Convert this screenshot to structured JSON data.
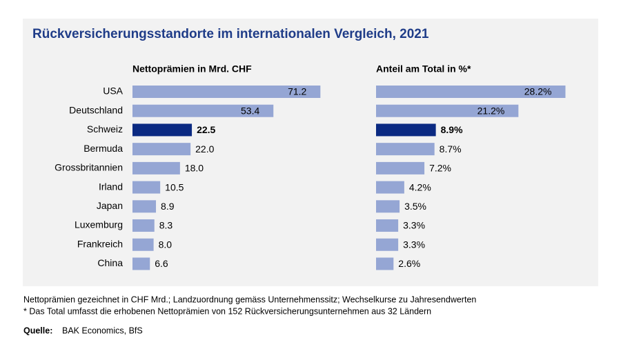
{
  "title": "Rückversicherungsstandorte im internationalen Vergleich, 2021",
  "chart_data": [
    {
      "type": "hbar",
      "title": "Nettoprämien in Mrd. CHF",
      "categories": [
        "USA",
        "Deutschland",
        "Schweiz",
        "Bermuda",
        "Grossbritannien",
        "Irland",
        "Japan",
        "Luxemburg",
        "Frankreich",
        "China"
      ],
      "values": [
        71.2,
        53.4,
        22.5,
        22.0,
        18.0,
        10.5,
        8.9,
        8.3,
        8.0,
        6.6
      ],
      "value_labels": [
        "71.2",
        "53.4",
        "22.5",
        "22.0",
        "18.0",
        "10.5",
        "8.9",
        "8.3",
        "8.0",
        "6.6"
      ],
      "color": "#95a6d4",
      "highlight": {
        "index": 2,
        "color": "#0b2a82"
      },
      "xlim": [
        0,
        80
      ]
    },
    {
      "type": "hbar",
      "title": "Anteil am Total in %*",
      "values": [
        28.2,
        21.2,
        8.9,
        8.7,
        7.2,
        4.2,
        3.5,
        3.3,
        3.3,
        2.6
      ],
      "value_labels": [
        "28.2%",
        "21.2%",
        "8.9%",
        "8.7%",
        "7.2%",
        "4.2%",
        "3.5%",
        "3.3%",
        "3.3%",
        "2.6%"
      ],
      "color": "#95a6d4",
      "highlight": {
        "index": 2,
        "color": "#0b2a82"
      },
      "xlim": [
        0,
        30
      ]
    }
  ],
  "notes": [
    "Nettoprämien gezeichnet in CHF Mrd.; Landzuordnung gemäss Unternehmenssitz; Wechselkurse zu Jahresendwerten",
    "* Das Total umfasst die erhobenen Nettoprämien von 152 Rückversicherungsunternehmen aus 32 Ländern"
  ],
  "source": {
    "label": "Quelle:",
    "text": "BAK Economics, BfS"
  }
}
